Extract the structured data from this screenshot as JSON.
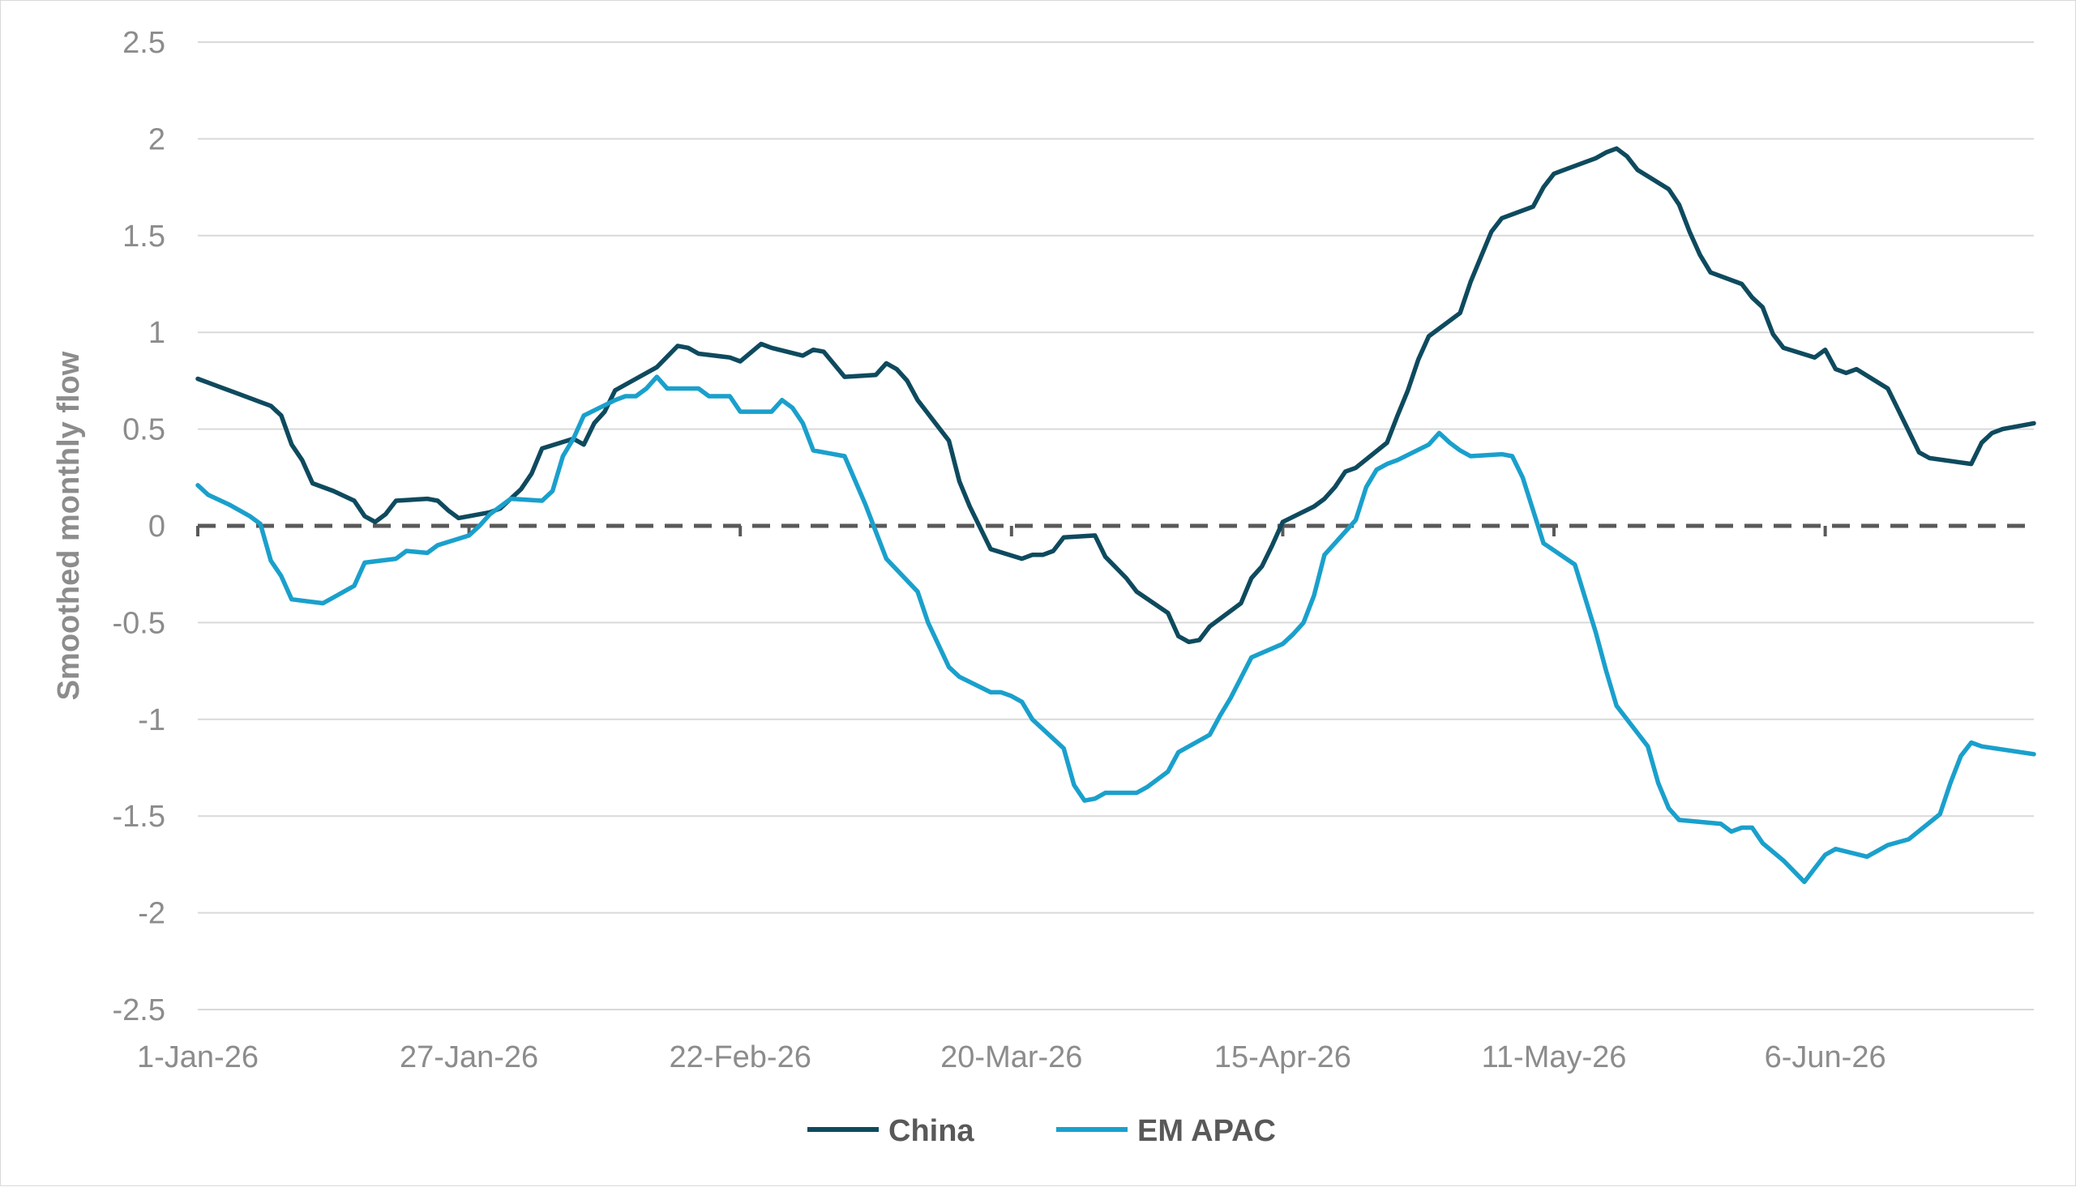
{
  "chart_data": {
    "type": "line",
    "title": "",
    "xlabel": "",
    "ylabel": "Smoothed monthly flow",
    "ylim": [
      -2.5,
      2.5
    ],
    "yticks": [
      2.5,
      2,
      1.5,
      1,
      0.5,
      0,
      -0.5,
      -1,
      -1.5,
      -2,
      -2.5
    ],
    "ytick_labels": [
      "2.5",
      "2",
      "1.5",
      "1",
      "0.5",
      "0",
      "-0.5",
      "-1",
      "-1.5",
      "-2",
      "-2.5"
    ],
    "xlim": [
      "2026-01-01",
      "2026-06-26"
    ],
    "xticks": [
      "2026-01-01",
      "2026-01-27",
      "2026-02-22",
      "2026-03-20",
      "2026-04-15",
      "2026-05-11",
      "2026-06-06"
    ],
    "xtick_labels": [
      "1-Jan-26",
      "27-Jan-26",
      "22-Feb-26",
      "20-Mar-26",
      "15-Apr-26",
      "11-May-26",
      "6-Jun-26"
    ],
    "grid": "horizontal",
    "reference_line": {
      "y": 0,
      "style": "dashed",
      "color": "#595959"
    },
    "legend_position": "bottom",
    "series": [
      {
        "name": "China",
        "color": "#0e4a5e",
        "points": [
          [
            "2026-01-01",
            0.76
          ],
          [
            "2026-01-03",
            0.72
          ],
          [
            "2026-01-05",
            0.68
          ],
          [
            "2026-01-07",
            0.64
          ],
          [
            "2026-01-08",
            0.62
          ],
          [
            "2026-01-09",
            0.57
          ],
          [
            "2026-01-10",
            0.42
          ],
          [
            "2026-01-11",
            0.34
          ],
          [
            "2026-01-12",
            0.22
          ],
          [
            "2026-01-14",
            0.18
          ],
          [
            "2026-01-16",
            0.13
          ],
          [
            "2026-01-17",
            0.05
          ],
          [
            "2026-01-18",
            0.02
          ],
          [
            "2026-01-19",
            0.06
          ],
          [
            "2026-01-20",
            0.13
          ],
          [
            "2026-01-23",
            0.14
          ],
          [
            "2026-01-24",
            0.13
          ],
          [
            "2026-01-25",
            0.08
          ],
          [
            "2026-01-26",
            0.04
          ],
          [
            "2026-01-27",
            0.05
          ],
          [
            "2026-01-29",
            0.07
          ],
          [
            "2026-01-30",
            0.09
          ],
          [
            "2026-02-01",
            0.19
          ],
          [
            "2026-02-02",
            0.27
          ],
          [
            "2026-02-03",
            0.4
          ],
          [
            "2026-02-06",
            0.45
          ],
          [
            "2026-02-07",
            0.42
          ],
          [
            "2026-02-08",
            0.53
          ],
          [
            "2026-02-09",
            0.59
          ],
          [
            "2026-02-10",
            0.7
          ],
          [
            "2026-02-12",
            0.76
          ],
          [
            "2026-02-14",
            0.82
          ],
          [
            "2026-02-16",
            0.93
          ],
          [
            "2026-02-17",
            0.92
          ],
          [
            "2026-02-18",
            0.89
          ],
          [
            "2026-02-21",
            0.87
          ],
          [
            "2026-02-22",
            0.85
          ],
          [
            "2026-02-24",
            0.94
          ],
          [
            "2026-02-25",
            0.92
          ],
          [
            "2026-02-28",
            0.88
          ],
          [
            "2026-03-01",
            0.91
          ],
          [
            "2026-03-02",
            0.9
          ],
          [
            "2026-03-04",
            0.77
          ],
          [
            "2026-03-07",
            0.78
          ],
          [
            "2026-03-08",
            0.84
          ],
          [
            "2026-03-09",
            0.81
          ],
          [
            "2026-03-10",
            0.75
          ],
          [
            "2026-03-11",
            0.65
          ],
          [
            "2026-03-14",
            0.44
          ],
          [
            "2026-03-15",
            0.23
          ],
          [
            "2026-03-16",
            0.1
          ],
          [
            "2026-03-18",
            -0.12
          ],
          [
            "2026-03-21",
            -0.17
          ],
          [
            "2026-03-22",
            -0.15
          ],
          [
            "2026-03-23",
            -0.15
          ],
          [
            "2026-03-24",
            -0.13
          ],
          [
            "2026-03-25",
            -0.06
          ],
          [
            "2026-03-28",
            -0.05
          ],
          [
            "2026-03-29",
            -0.16
          ],
          [
            "2026-03-31",
            -0.27
          ],
          [
            "2026-04-01",
            -0.34
          ],
          [
            "2026-04-04",
            -0.45
          ],
          [
            "2026-04-05",
            -0.57
          ],
          [
            "2026-04-06",
            -0.6
          ],
          [
            "2026-04-07",
            -0.59
          ],
          [
            "2026-04-08",
            -0.52
          ],
          [
            "2026-04-11",
            -0.4
          ],
          [
            "2026-04-12",
            -0.27
          ],
          [
            "2026-04-13",
            -0.21
          ],
          [
            "2026-04-14",
            -0.1
          ],
          [
            "2026-04-15",
            0.02
          ],
          [
            "2026-04-18",
            0.1
          ],
          [
            "2026-04-19",
            0.14
          ],
          [
            "2026-04-20",
            0.2
          ],
          [
            "2026-04-21",
            0.28
          ],
          [
            "2026-04-22",
            0.3
          ],
          [
            "2026-04-25",
            0.43
          ],
          [
            "2026-04-26",
            0.57
          ],
          [
            "2026-04-27",
            0.7
          ],
          [
            "2026-04-28",
            0.86
          ],
          [
            "2026-04-29",
            0.98
          ],
          [
            "2026-05-02",
            1.1
          ],
          [
            "2026-05-03",
            1.26
          ],
          [
            "2026-05-04",
            1.39
          ],
          [
            "2026-05-05",
            1.52
          ],
          [
            "2026-05-06",
            1.59
          ],
          [
            "2026-05-09",
            1.65
          ],
          [
            "2026-05-10",
            1.75
          ],
          [
            "2026-05-11",
            1.82
          ],
          [
            "2026-05-12",
            1.84
          ],
          [
            "2026-05-15",
            1.9
          ],
          [
            "2026-05-16",
            1.93
          ],
          [
            "2026-05-17",
            1.95
          ],
          [
            "2026-05-18",
            1.91
          ],
          [
            "2026-05-19",
            1.84
          ],
          [
            "2026-05-22",
            1.74
          ],
          [
            "2026-05-23",
            1.66
          ],
          [
            "2026-05-24",
            1.52
          ],
          [
            "2026-05-25",
            1.4
          ],
          [
            "2026-05-26",
            1.31
          ],
          [
            "2026-05-29",
            1.25
          ],
          [
            "2026-05-30",
            1.18
          ],
          [
            "2026-05-31",
            1.13
          ],
          [
            "2026-06-01",
            0.99
          ],
          [
            "2026-06-02",
            0.92
          ],
          [
            "2026-06-05",
            0.87
          ],
          [
            "2026-06-06",
            0.91
          ],
          [
            "2026-06-07",
            0.81
          ],
          [
            "2026-06-08",
            0.79
          ],
          [
            "2026-06-09",
            0.81
          ],
          [
            "2026-06-12",
            0.71
          ],
          [
            "2026-06-13",
            0.6
          ],
          [
            "2026-06-14",
            0.49
          ],
          [
            "2026-06-15",
            0.38
          ],
          [
            "2026-06-16",
            0.35
          ],
          [
            "2026-06-20",
            0.32
          ],
          [
            "2026-06-21",
            0.43
          ],
          [
            "2026-06-22",
            0.48
          ],
          [
            "2026-06-23",
            0.5
          ],
          [
            "2026-06-26",
            0.53
          ]
        ]
      },
      {
        "name": "EM APAC",
        "color": "#1aa0cc",
        "points": [
          [
            "2026-01-01",
            0.21
          ],
          [
            "2026-01-02",
            0.16
          ],
          [
            "2026-01-04",
            0.11
          ],
          [
            "2026-01-06",
            0.05
          ],
          [
            "2026-01-07",
            0.01
          ],
          [
            "2026-01-08",
            -0.18
          ],
          [
            "2026-01-09",
            -0.26
          ],
          [
            "2026-01-10",
            -0.38
          ],
          [
            "2026-01-13",
            -0.4
          ],
          [
            "2026-01-14",
            -0.37
          ],
          [
            "2026-01-16",
            -0.31
          ],
          [
            "2026-01-17",
            -0.19
          ],
          [
            "2026-01-20",
            -0.17
          ],
          [
            "2026-01-21",
            -0.13
          ],
          [
            "2026-01-23",
            -0.14
          ],
          [
            "2026-01-24",
            -0.1
          ],
          [
            "2026-01-27",
            -0.05
          ],
          [
            "2026-01-28",
            0.0
          ],
          [
            "2026-01-29",
            0.06
          ],
          [
            "2026-01-31",
            0.14
          ],
          [
            "2026-02-03",
            0.13
          ],
          [
            "2026-02-04",
            0.18
          ],
          [
            "2026-02-05",
            0.36
          ],
          [
            "2026-02-06",
            0.45
          ],
          [
            "2026-02-07",
            0.57
          ],
          [
            "2026-02-10",
            0.65
          ],
          [
            "2026-02-11",
            0.67
          ],
          [
            "2026-02-12",
            0.67
          ],
          [
            "2026-02-13",
            0.71
          ],
          [
            "2026-02-14",
            0.77
          ],
          [
            "2026-02-15",
            0.71
          ],
          [
            "2026-02-18",
            0.71
          ],
          [
            "2026-02-19",
            0.67
          ],
          [
            "2026-02-21",
            0.67
          ],
          [
            "2026-02-22",
            0.59
          ],
          [
            "2026-02-25",
            0.59
          ],
          [
            "2026-02-26",
            0.65
          ],
          [
            "2026-02-27",
            0.61
          ],
          [
            "2026-02-28",
            0.53
          ],
          [
            "2026-03-01",
            0.39
          ],
          [
            "2026-03-04",
            0.36
          ],
          [
            "2026-03-06",
            0.11
          ],
          [
            "2026-03-07",
            -0.03
          ],
          [
            "2026-03-08",
            -0.17
          ],
          [
            "2026-03-11",
            -0.34
          ],
          [
            "2026-03-12",
            -0.5
          ],
          [
            "2026-03-14",
            -0.73
          ],
          [
            "2026-03-15",
            -0.78
          ],
          [
            "2026-03-18",
            -0.86
          ],
          [
            "2026-03-19",
            -0.86
          ],
          [
            "2026-03-20",
            -0.88
          ],
          [
            "2026-03-21",
            -0.91
          ],
          [
            "2026-03-22",
            -1.0
          ],
          [
            "2026-03-25",
            -1.15
          ],
          [
            "2026-03-26",
            -1.34
          ],
          [
            "2026-03-27",
            -1.42
          ],
          [
            "2026-03-28",
            -1.41
          ],
          [
            "2026-03-29",
            -1.38
          ],
          [
            "2026-04-01",
            -1.38
          ],
          [
            "2026-04-02",
            -1.35
          ],
          [
            "2026-04-04",
            -1.27
          ],
          [
            "2026-04-05",
            -1.17
          ],
          [
            "2026-04-08",
            -1.08
          ],
          [
            "2026-04-09",
            -0.98
          ],
          [
            "2026-04-10",
            -0.89
          ],
          [
            "2026-04-12",
            -0.68
          ],
          [
            "2026-04-15",
            -0.61
          ],
          [
            "2026-04-16",
            -0.56
          ],
          [
            "2026-04-17",
            -0.5
          ],
          [
            "2026-04-18",
            -0.36
          ],
          [
            "2026-04-19",
            -0.15
          ],
          [
            "2026-04-22",
            0.03
          ],
          [
            "2026-04-23",
            0.2
          ],
          [
            "2026-04-24",
            0.29
          ],
          [
            "2026-04-25",
            0.32
          ],
          [
            "2026-04-26",
            0.34
          ],
          [
            "2026-04-29",
            0.42
          ],
          [
            "2026-04-30",
            0.48
          ],
          [
            "2026-05-01",
            0.43
          ],
          [
            "2026-05-02",
            0.39
          ],
          [
            "2026-05-03",
            0.36
          ],
          [
            "2026-05-06",
            0.37
          ],
          [
            "2026-05-07",
            0.36
          ],
          [
            "2026-05-08",
            0.25
          ],
          [
            "2026-05-09",
            0.08
          ],
          [
            "2026-05-10",
            -0.09
          ],
          [
            "2026-05-13",
            -0.2
          ],
          [
            "2026-05-15",
            -0.55
          ],
          [
            "2026-05-16",
            -0.75
          ],
          [
            "2026-05-17",
            -0.93
          ],
          [
            "2026-05-20",
            -1.14
          ],
          [
            "2026-05-21",
            -1.33
          ],
          [
            "2026-05-22",
            -1.46
          ],
          [
            "2026-05-23",
            -1.52
          ],
          [
            "2026-05-27",
            -1.54
          ],
          [
            "2026-05-28",
            -1.58
          ],
          [
            "2026-05-29",
            -1.56
          ],
          [
            "2026-05-30",
            -1.56
          ],
          [
            "2026-05-31",
            -1.64
          ],
          [
            "2026-06-02",
            -1.73
          ],
          [
            "2026-06-04",
            -1.84
          ],
          [
            "2026-06-05",
            -1.77
          ],
          [
            "2026-06-06",
            -1.7
          ],
          [
            "2026-06-07",
            -1.67
          ],
          [
            "2026-06-10",
            -1.71
          ],
          [
            "2026-06-11",
            -1.68
          ],
          [
            "2026-06-12",
            -1.65
          ],
          [
            "2026-06-14",
            -1.62
          ],
          [
            "2026-06-17",
            -1.49
          ],
          [
            "2026-06-18",
            -1.33
          ],
          [
            "2026-06-19",
            -1.19
          ],
          [
            "2026-06-20",
            -1.12
          ],
          [
            "2026-06-21",
            -1.14
          ],
          [
            "2026-06-26",
            -1.18
          ]
        ]
      }
    ]
  }
}
